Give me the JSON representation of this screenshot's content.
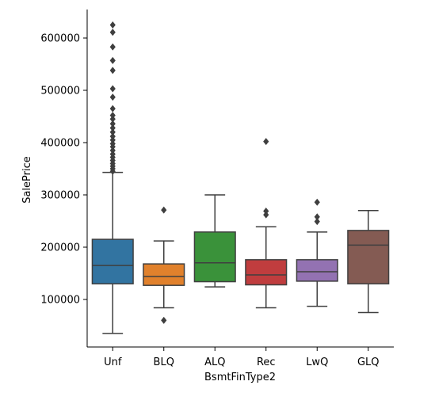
{
  "chart_data": {
    "type": "box",
    "xlabel": "BsmtFinType2",
    "ylabel": "SalePrice",
    "ylim": [
      0,
      655000
    ],
    "yticks": [
      100000,
      200000,
      300000,
      400000,
      500000,
      600000
    ],
    "ytick_labels": [
      "100000",
      "200000",
      "300000",
      "400000",
      "500000",
      "600000"
    ],
    "categories": [
      "Unf",
      "BLQ",
      "ALQ",
      "Rec",
      "LwQ",
      "GLQ"
    ],
    "grid": false,
    "legend": "none",
    "boxes": [
      {
        "category": "Unf",
        "color": "#3274a1",
        "whisker_low": 35000,
        "q1": 130000,
        "median": 165000,
        "q3": 215000,
        "whisker_high": 343000,
        "outliers": [
          345000,
          350000,
          355000,
          360000,
          366000,
          372000,
          378000,
          385000,
          392000,
          398000,
          405000,
          412000,
          420000,
          428000,
          436000,
          445000,
          452000,
          465000,
          487000,
          503000,
          538000,
          557000,
          583000,
          611000,
          625000
        ]
      },
      {
        "category": "BLQ",
        "color": "#e1812c",
        "whisker_low": 84000,
        "q1": 127000,
        "median": 144000,
        "q3": 168000,
        "whisker_high": 212000,
        "outliers": [
          60000,
          271000
        ]
      },
      {
        "category": "ALQ",
        "color": "#3a923a",
        "whisker_low": 124000,
        "q1": 134000,
        "median": 170000,
        "q3": 229000,
        "whisker_high": 300000,
        "outliers": []
      },
      {
        "category": "Rec",
        "color": "#c03d3e",
        "whisker_low": 84000,
        "q1": 128000,
        "median": 147000,
        "q3": 176000,
        "whisker_high": 239000,
        "outliers": [
          262000,
          269000,
          402000
        ]
      },
      {
        "category": "LwQ",
        "color": "#9372b2",
        "whisker_low": 87000,
        "q1": 135000,
        "median": 153000,
        "q3": 176000,
        "whisker_high": 229000,
        "outliers": [
          249000,
          258000,
          286000
        ]
      },
      {
        "category": "GLQ",
        "color": "#845b53",
        "whisker_low": 75000,
        "q1": 130000,
        "median": 204000,
        "q3": 232000,
        "whisker_high": 270000,
        "outliers": []
      }
    ]
  }
}
